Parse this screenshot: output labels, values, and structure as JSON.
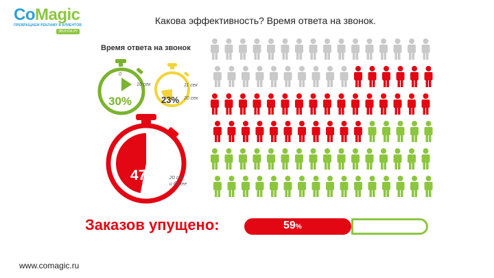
{
  "header": {
    "logo_main_a": "Co",
    "logo_main_b": "Magic",
    "logo_tagline": "ПРЕВРАЩАЕМ РЕКЛАМУ В КЛИЕНТОВ",
    "logo_badge": "ЗВОНОК.РУ",
    "title": "Какова эффективность? Время ответа на звонок."
  },
  "infographic": {
    "subtitle": "Время ответа на звонок",
    "timers": [
      {
        "percent": "30%",
        "label": "10 сек",
        "start_label": "0",
        "share": 0.3,
        "color": "#7ab32e"
      },
      {
        "percent": "23%",
        "label": "11 сек",
        "label2": "20 сек",
        "share": 0.23,
        "color": "#f2d43a"
      },
      {
        "percent": "47%",
        "label": "20 сек",
        "label2": "и более",
        "share": 0.47,
        "color": "#e30613"
      }
    ],
    "people_grid": {
      "rows": [
        {
          "count": 16,
          "gray": 16,
          "red": 0
        },
        {
          "count": 16,
          "gray": 10,
          "red": 6
        },
        {
          "count": 16,
          "gray": 0,
          "red": 16
        },
        {
          "count": 16,
          "gray": 0,
          "red": 11
        },
        {
          "count": 16,
          "gray": 0,
          "red": 0
        },
        {
          "count": 16,
          "gray": 0,
          "red": 0
        }
      ],
      "colors": {
        "gray": "#c9c9c9",
        "red": "#e30613",
        "green": "#8cc63f"
      }
    },
    "missed": {
      "label": "Заказов упущено:",
      "value": "59",
      "unit": "%",
      "share": 0.59
    }
  },
  "footer": {
    "website": "www.comagic.ru"
  }
}
